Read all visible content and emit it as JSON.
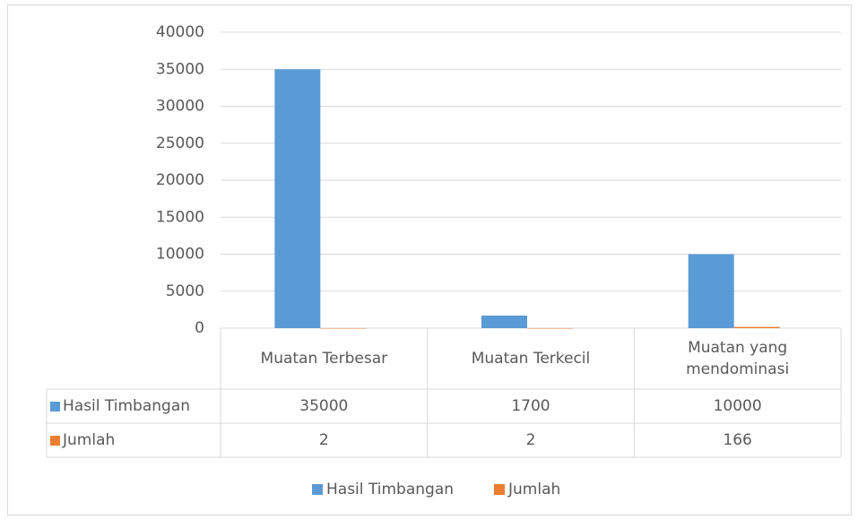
{
  "chart_data": {
    "type": "bar",
    "categories": [
      "Muatan Terbesar",
      "Muatan Terkecil",
      "Muatan yang mendominasi"
    ],
    "series": [
      {
        "name": "Hasil Timbangan",
        "color": "#5b9bd5",
        "values": [
          35000,
          1700,
          10000
        ]
      },
      {
        "name": "Jumlah",
        "color": "#ed7d31",
        "values": [
          2,
          2,
          166
        ]
      }
    ],
    "ylim": [
      0,
      40000
    ],
    "yticks": [
      0,
      5000,
      10000,
      15000,
      20000,
      25000,
      30000,
      35000,
      40000
    ],
    "grid": true,
    "data_table": true,
    "legend": "bottom"
  }
}
